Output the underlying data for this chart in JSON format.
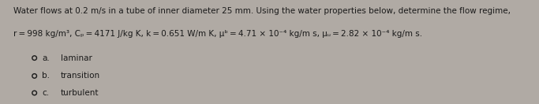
{
  "outer_bg": "#b0aaa4",
  "inner_bg": "#d8d4ce",
  "text_color": "#1a1a1a",
  "line1": "Water flows at 0.2 m/s in a tube of inner diameter 25 mm. Using the water properties below, determine the flow regime,",
  "line2": "r = 998 kg/m³, Cₚ = 4171 J/kg K, k = 0.651 W/m K, μᵇ = 4.71 × 10⁻⁴ kg/m s, μᵤ = 2.82 × 10⁻⁴ kg/m s.",
  "options": [
    {
      "label": "a.",
      "text": "laminar"
    },
    {
      "label": "b.",
      "text": "transition"
    },
    {
      "label": "c.",
      "text": "turbulent"
    }
  ],
  "font_size": 7.5,
  "circle_r": 0.022
}
